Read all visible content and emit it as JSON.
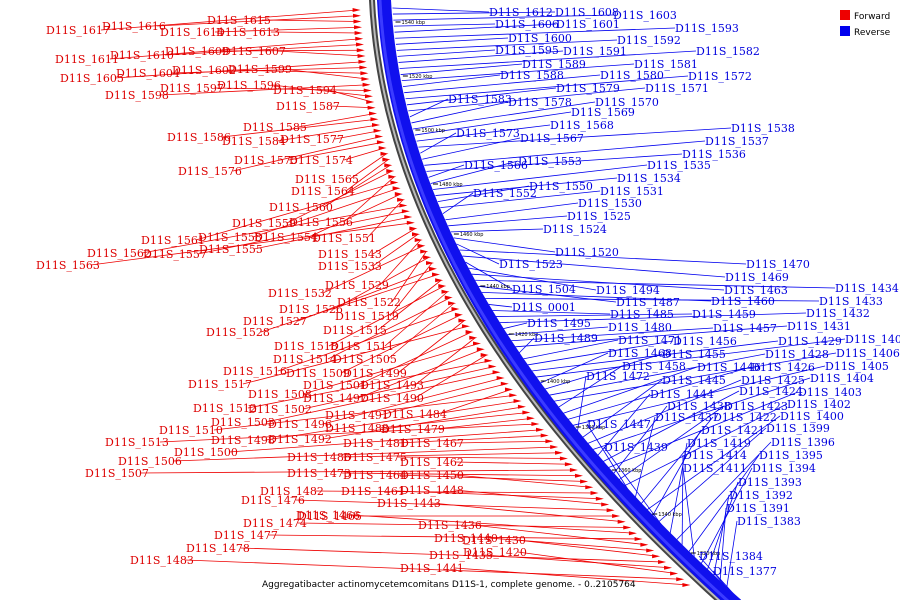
{
  "legend": [
    {
      "label": "Forward",
      "color": "#ee0000"
    },
    {
      "label": "Reverse",
      "color": "#0000ee"
    }
  ],
  "caption": "Aggregatibacter actinomycetemcomitans D11S-1, complete genome. - 0..2105764",
  "backbone_ticks": [
    "1540 kbp",
    "1520 kbp",
    "1500 kbp",
    "1480 kbp",
    "1460 kbp",
    "1440 kbp",
    "1420 kbp",
    "1400 kbp",
    "1380 kbp",
    "1360 kbp",
    "1340 kbp",
    "1320 kbp"
  ],
  "forward_labels": [
    "D11S_1617",
    "D11S_1616",
    "D11S_1615",
    "D11S_1614",
    "D11S_1613",
    "D11S_1611",
    "D11S_1610",
    "D11S_1609",
    "D11S_1607",
    "D11S_1605",
    "D11S_1604",
    "D11S_1602",
    "D11S_1599",
    "D11S_1598",
    "D11S_1597",
    "D11S_1596",
    "D11S_1594",
    "D11S_1587",
    "D11S_1585",
    "D11S_1586",
    "D11S_1584",
    "D11S_1577",
    "D11S_1576",
    "D11S_1575",
    "D11S_1574",
    "D11S_1565",
    "D11S_1564",
    "D11S_1560",
    "D11S_1559",
    "D11S_1556",
    "D11S_1561",
    "D11S_1558",
    "D11S_1554",
    "D11S_1551",
    "D11S_1562",
    "D11S_1557",
    "D11S_1555",
    "D11S_1563",
    "D11S_1543",
    "D11S_1533",
    "D11S_1529",
    "D11S_1532",
    "D11S_1522",
    "D11S_1526",
    "D11S_1519",
    "D11S_1527",
    "D11S_1528",
    "D11S_1515",
    "D11S_1518",
    "D11S_1511",
    "D11S_1514",
    "D11S_1505",
    "D11S_1516",
    "D11S_1509",
    "D11S_1499",
    "D11S_1517",
    "D11S_1501",
    "D11S_1493",
    "D11S_1508",
    "D11S_1497",
    "D11S_1490",
    "D11S_1512",
    "D11S_1502",
    "D11S_1503",
    "D11S_1496",
    "D11S_1491",
    "D11S_1484",
    "D11S_1510",
    "D11S_1498",
    "D11S_1492",
    "D11S_1488",
    "D11S_1479",
    "D11S_1513",
    "D11S_1500",
    "D11S_1481",
    "D11S_1467",
    "D11S_1506",
    "D11S_1486",
    "D11S_1475",
    "D11S_1462",
    "D11S_1507",
    "D11S_1473",
    "D11S_1464",
    "D11S_1450",
    "D11S_1482",
    "D11S_1461",
    "D11S_1448",
    "D11S_1476",
    "D11S_1465",
    "D11S_1443",
    "D11S_1474",
    "D11S_1466",
    "D11S_1477",
    "D11S_1436",
    "D11S_1440",
    "D11S_1430",
    "D11S_1478",
    "D11S_1435",
    "D11S_1420",
    "D11S_1483",
    "D11S_1441"
  ],
  "reverse_labels": [
    "D11S_1612",
    "D11S_1608",
    "D11S_1603",
    "D11S_1606",
    "D11S_1601",
    "D11S_1593",
    "D11S_1600",
    "D11S_1592",
    "D11S_1595",
    "D11S_1591",
    "D11S_1582",
    "D11S_1589",
    "D11S_1581",
    "D11S_1588",
    "D11S_1580",
    "D11S_1572",
    "D11S_1579",
    "D11S_1571",
    "D11S_1583",
    "D11S_1578",
    "D11S_1570",
    "D11S_1569",
    "D11S_1568",
    "D11S_1538",
    "D11S_1573",
    "D11S_1567",
    "D11S_1537",
    "D11S_1536",
    "D11S_1566",
    "D11S_1553",
    "D11S_1535",
    "D11S_1534",
    "D11S_1550",
    "D11S_1531",
    "D11S_1552",
    "D11S_1530",
    "D11S_1525",
    "D11S_1524",
    "D11S_1520",
    "D11S_1523",
    "D11S_1470",
    "D11S_1469",
    "D11S_1504",
    "D11S_1494",
    "D11S_1463",
    "D11S_1434",
    "D11S_1487",
    "D11S_1460",
    "D11S_1433",
    "D11S_0001",
    "D11S_1485",
    "D11S_1459",
    "D11S_1432",
    "D11S_1495",
    "D11S_1480",
    "D11S_1457",
    "D11S_1431",
    "D11S_1489",
    "D11S_1471",
    "D11S_1456",
    "D11S_1429",
    "D11S_1409",
    "D11S_1468",
    "D11S_1455",
    "D11S_1428",
    "D11S_1406",
    "D11S_1458",
    "D11S_1446",
    "D11S_1426",
    "D11S_1405",
    "D11S_1472",
    "D11S_1445",
    "D11S_1425",
    "D11S_1404",
    "D11S_1444",
    "D11S_1424",
    "D11S_1403",
    "D11S_1438",
    "D11S_1423",
    "D11S_1402",
    "D11S_1447",
    "D11S_1437",
    "D11S_1422",
    "D11S_1400",
    "D11S_1421",
    "D11S_1399",
    "D11S_1439",
    "D11S_1419",
    "D11S_1396",
    "D11S_1414",
    "D11S_1395",
    "D11S_1411",
    "D11S_1394",
    "D11S_1393",
    "D11S_1392",
    "D11S_1391",
    "D11S_1383",
    "D11S_1384",
    "D11S_1377"
  ]
}
